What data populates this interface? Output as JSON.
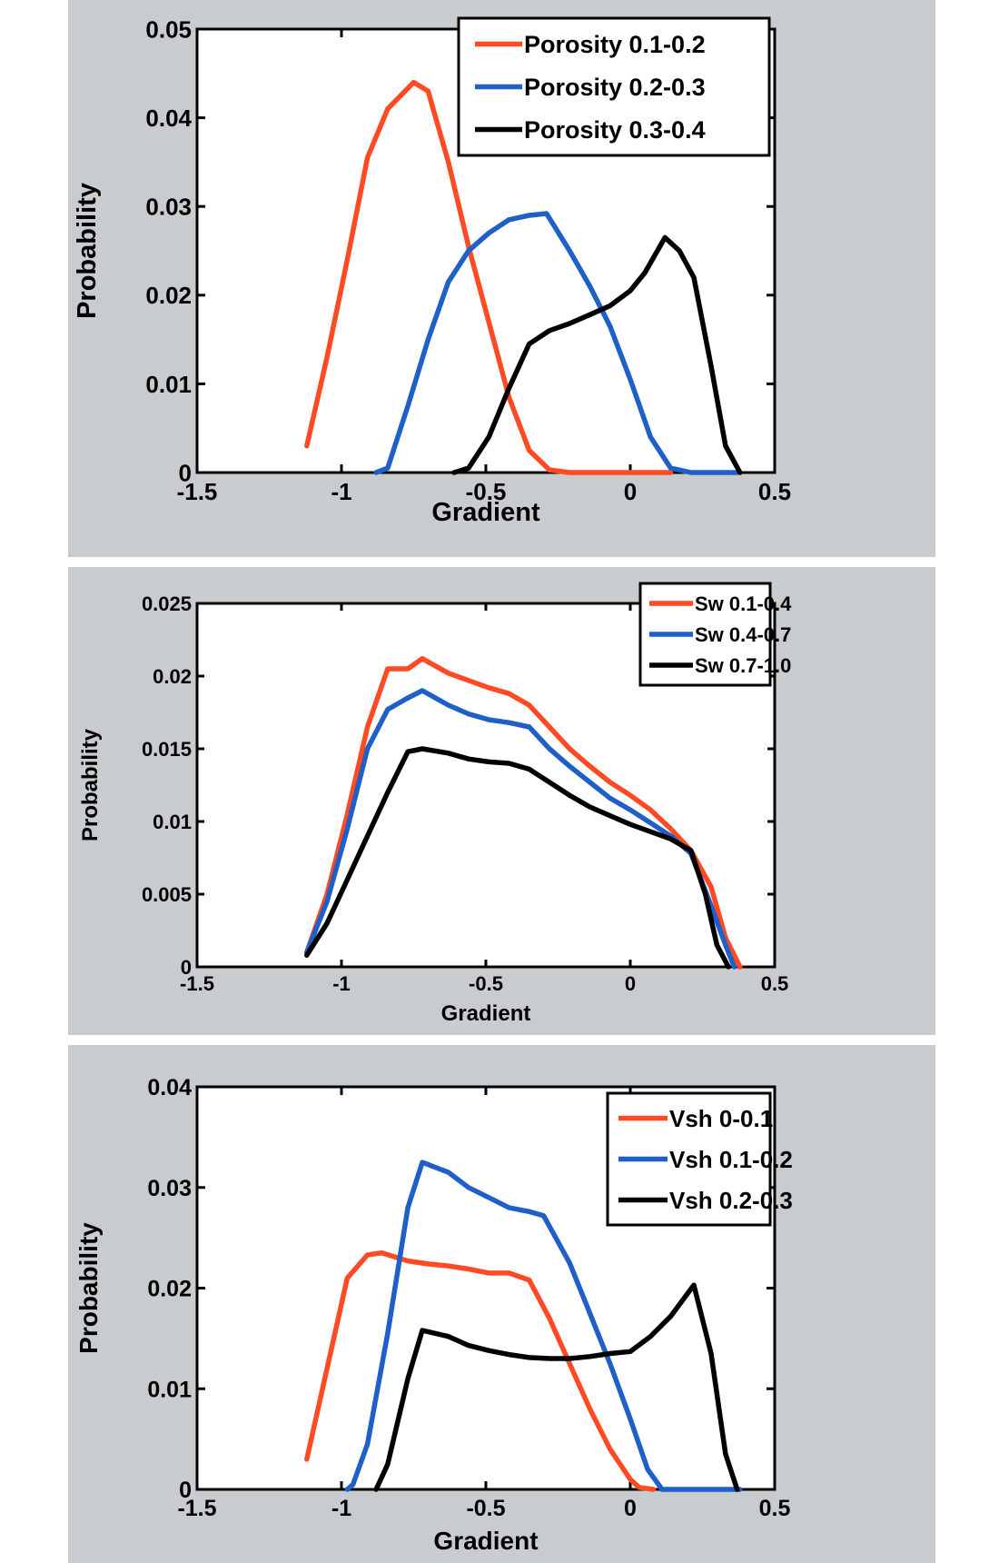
{
  "chart_data": [
    {
      "type": "line",
      "xlabel": "Gradient",
      "ylabel": "Probability",
      "xlim": [
        -1.5,
        0.5
      ],
      "ylim": [
        0,
        0.05
      ],
      "xticks": [
        "-1.5",
        "-1",
        "-0.5",
        "0",
        "0.5"
      ],
      "yticks": [
        "0",
        "0.01",
        "0.02",
        "0.03",
        "0.04",
        "0.05"
      ],
      "grid": false,
      "legend": "top-right",
      "series": [
        {
          "name": "Porosity 0.1-0.2",
          "color": "#ff4a23",
          "x": [
            -1.12,
            -1.05,
            -0.98,
            -0.91,
            -0.84,
            -0.75,
            -0.7,
            -0.63,
            -0.56,
            -0.49,
            -0.42,
            -0.35,
            -0.28,
            -0.21,
            -0.14,
            -0.07,
            0.0,
            0.07,
            0.14
          ],
          "y": [
            0.003,
            0.013,
            0.024,
            0.0355,
            0.041,
            0.044,
            0.043,
            0.035,
            0.0255,
            0.017,
            0.0085,
            0.0025,
            0.0003,
            0.0,
            0.0,
            0.0,
            0.0,
            0.0,
            0.0
          ]
        },
        {
          "name": "Porosity 0.2-0.3",
          "color": "#1f5fc8",
          "x": [
            -0.88,
            -0.84,
            -0.77,
            -0.7,
            -0.63,
            -0.56,
            -0.49,
            -0.42,
            -0.35,
            -0.29,
            -0.21,
            -0.14,
            -0.07,
            0.0,
            0.07,
            0.14,
            0.21,
            0.28,
            0.37
          ],
          "y": [
            0.0,
            0.0005,
            0.0075,
            0.015,
            0.0215,
            0.025,
            0.027,
            0.0285,
            0.029,
            0.0292,
            0.025,
            0.021,
            0.0165,
            0.0105,
            0.004,
            0.0005,
            0.0,
            0.0,
            0.0
          ],
          "skip_points": 1
        },
        {
          "name": "Porosity 0.3-0.4",
          "color": "#000000",
          "x": [
            -0.61,
            -0.56,
            -0.49,
            -0.42,
            -0.35,
            -0.28,
            -0.21,
            -0.14,
            -0.07,
            0.0,
            0.05,
            0.12,
            0.17,
            0.22,
            0.28,
            0.33,
            0.38
          ],
          "y": [
            0.0,
            0.0005,
            0.004,
            0.0095,
            0.0145,
            0.016,
            0.0168,
            0.0178,
            0.0188,
            0.0205,
            0.0225,
            0.0265,
            0.025,
            0.022,
            0.012,
            0.003,
            0.0
          ]
        }
      ]
    },
    {
      "type": "line",
      "xlabel": "Gradient",
      "ylabel": "Probability",
      "xlim": [
        -1.5,
        0.5
      ],
      "ylim": [
        0,
        0.025
      ],
      "xticks": [
        "-1.5",
        "-1",
        "-0.5",
        "0",
        "0.5"
      ],
      "yticks": [
        "0",
        "0.005",
        "0.01",
        "0.015",
        "0.02",
        "0.025"
      ],
      "grid": false,
      "legend": "top-right",
      "series": [
        {
          "name": "Sw 0.1-0.4",
          "color": "#ff4a23",
          "x": [
            -1.12,
            -1.05,
            -0.98,
            -0.91,
            -0.84,
            -0.77,
            -0.72,
            -0.63,
            -0.56,
            -0.49,
            -0.42,
            -0.35,
            -0.28,
            -0.21,
            -0.14,
            -0.07,
            0.0,
            0.07,
            0.14,
            0.21,
            0.28,
            0.33,
            0.38
          ],
          "y": [
            0.001,
            0.005,
            0.0105,
            0.0165,
            0.0205,
            0.0205,
            0.0212,
            0.0202,
            0.0197,
            0.0192,
            0.0188,
            0.018,
            0.0165,
            0.015,
            0.0138,
            0.0127,
            0.0118,
            0.0108,
            0.0095,
            0.008,
            0.0055,
            0.002,
            0.0
          ]
        },
        {
          "name": "Sw 0.4-0.7",
          "color": "#1f5fc8",
          "x": [
            -1.12,
            -1.05,
            -0.98,
            -0.91,
            -0.84,
            -0.77,
            -0.72,
            -0.63,
            -0.56,
            -0.49,
            -0.42,
            -0.35,
            -0.28,
            -0.21,
            -0.14,
            -0.07,
            0.0,
            0.07,
            0.14,
            0.21,
            0.28,
            0.33,
            0.36
          ],
          "y": [
            0.001,
            0.0045,
            0.0095,
            0.015,
            0.0177,
            0.0185,
            0.019,
            0.018,
            0.0174,
            0.017,
            0.0168,
            0.0165,
            0.015,
            0.0138,
            0.0127,
            0.0116,
            0.0108,
            0.0099,
            0.009,
            0.0078,
            0.0042,
            0.0015,
            0.0
          ]
        },
        {
          "name": "Sw 0.7-1.0",
          "color": "#000000",
          "x": [
            -1.12,
            -1.05,
            -0.98,
            -0.91,
            -0.84,
            -0.77,
            -0.72,
            -0.63,
            -0.56,
            -0.49,
            -0.42,
            -0.35,
            -0.28,
            -0.21,
            -0.14,
            -0.07,
            0.0,
            0.07,
            0.14,
            0.21,
            0.26,
            0.3,
            0.34
          ],
          "y": [
            0.0008,
            0.003,
            0.006,
            0.009,
            0.012,
            0.0148,
            0.015,
            0.0147,
            0.0143,
            0.0141,
            0.014,
            0.0136,
            0.0127,
            0.0118,
            0.011,
            0.0104,
            0.0098,
            0.0093,
            0.0088,
            0.008,
            0.005,
            0.0015,
            0.0
          ]
        }
      ]
    },
    {
      "type": "line",
      "xlabel": "Gradient",
      "ylabel": "Probability",
      "xlim": [
        -1.5,
        0.5
      ],
      "ylim": [
        0,
        0.04
      ],
      "xticks": [
        "-1.5",
        "-1",
        "-0.5",
        "0",
        "0.5"
      ],
      "yticks": [
        "0",
        "0.01",
        "0.02",
        "0.03",
        "0.04"
      ],
      "grid": false,
      "legend": "top-right",
      "series": [
        {
          "name": "Vsh 0-0.1",
          "color": "#ff4a23",
          "x": [
            -1.12,
            -1.05,
            -0.98,
            -0.91,
            -0.86,
            -0.77,
            -0.7,
            -0.63,
            -0.56,
            -0.49,
            -0.42,
            -0.35,
            -0.28,
            -0.21,
            -0.14,
            -0.07,
            0.0,
            0.03,
            0.08
          ],
          "y": [
            0.003,
            0.012,
            0.021,
            0.0233,
            0.0235,
            0.0227,
            0.0224,
            0.0222,
            0.0219,
            0.0215,
            0.0215,
            0.0208,
            0.017,
            0.0125,
            0.008,
            0.004,
            0.001,
            0.0002,
            0.0
          ]
        },
        {
          "name": "Vsh 0.1-0.2",
          "color": "#1f5fc8",
          "x": [
            -0.98,
            -0.96,
            -0.91,
            -0.84,
            -0.77,
            -0.72,
            -0.63,
            -0.56,
            -0.49,
            -0.42,
            -0.35,
            -0.3,
            -0.21,
            -0.14,
            -0.07,
            0.0,
            0.06,
            0.11,
            0.38
          ],
          "y": [
            0.0,
            0.0005,
            0.0045,
            0.0155,
            0.028,
            0.0325,
            0.0315,
            0.03,
            0.029,
            0.028,
            0.0276,
            0.0272,
            0.0225,
            0.0175,
            0.0125,
            0.007,
            0.002,
            0.0,
            0.0
          ],
          "skip_points": 1
        },
        {
          "name": "Vsh 0.2-0.3",
          "color": "#000000",
          "x": [
            -0.88,
            -0.84,
            -0.77,
            -0.72,
            -0.63,
            -0.56,
            -0.49,
            -0.42,
            -0.35,
            -0.28,
            -0.21,
            -0.14,
            -0.07,
            0.0,
            0.07,
            0.14,
            0.22,
            0.28,
            0.33,
            0.37
          ],
          "y": [
            0.0,
            0.0025,
            0.011,
            0.0158,
            0.0152,
            0.0143,
            0.0138,
            0.0134,
            0.0131,
            0.013,
            0.013,
            0.0132,
            0.0135,
            0.0137,
            0.0152,
            0.0172,
            0.0203,
            0.0135,
            0.0035,
            0.0
          ]
        }
      ]
    }
  ]
}
